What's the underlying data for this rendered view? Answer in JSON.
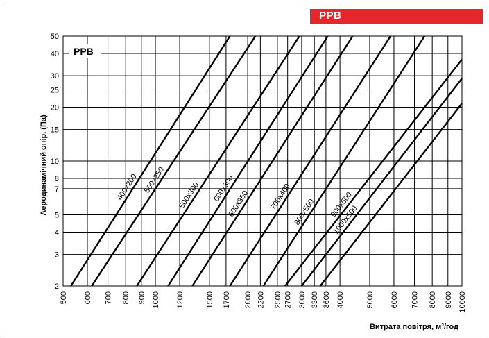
{
  "header": {
    "tag_label": "PPB",
    "tag_color": "#e5262a"
  },
  "chart_data": {
    "type": "line",
    "title": "",
    "plot_label": "PPB",
    "xlabel": "Витрата повітря, м³/год",
    "ylabel": "Аеродинамічний опір, (Па)",
    "x_scale": "log",
    "y_scale": "log",
    "xlim": [
      500,
      10000
    ],
    "ylim": [
      2,
      50
    ],
    "x_ticks": [
      500,
      600,
      700,
      800,
      900,
      1000,
      1200,
      1500,
      1700,
      2000,
      2200,
      2500,
      2700,
      3000,
      3300,
      3600,
      4000,
      5000,
      6000,
      7000,
      8000,
      9000,
      10000
    ],
    "y_ticks": [
      2,
      3,
      4,
      5,
      7,
      8,
      10,
      15,
      20,
      25,
      30,
      40,
      50
    ],
    "grid": true,
    "series": [
      {
        "name": "400x200",
        "x": [
          530,
          1750
        ],
        "y": [
          2,
          50
        ]
      },
      {
        "name": "500x250",
        "x": [
          620,
          2120
        ],
        "y": [
          2,
          50
        ]
      },
      {
        "name": "500x300",
        "x": [
          870,
          2950
        ],
        "y": [
          2,
          50
        ]
      },
      {
        "name": "600x300",
        "x": [
          1100,
          3650
        ],
        "y": [
          2,
          50
        ]
      },
      {
        "name": "600x350",
        "x": [
          1320,
          4400
        ],
        "y": [
          2,
          50
        ]
      },
      {
        "name": "700x400",
        "x": [
          1750,
          5850
        ],
        "y": [
          2,
          50
        ]
      },
      {
        "name": "800x500",
        "x": [
          2250,
          7550
        ],
        "y": [
          2,
          50
        ]
      },
      {
        "name": "900x500",
        "x": [
          2650,
          10000
        ],
        "y": [
          2,
          37
        ]
      },
      {
        "name": "1000x500",
        "x": [
          3000,
          10000
        ],
        "y": [
          2,
          29
        ]
      },
      {
        "name": "",
        "x": [
          3450,
          10000
        ],
        "y": [
          2,
          21
        ]
      }
    ]
  }
}
